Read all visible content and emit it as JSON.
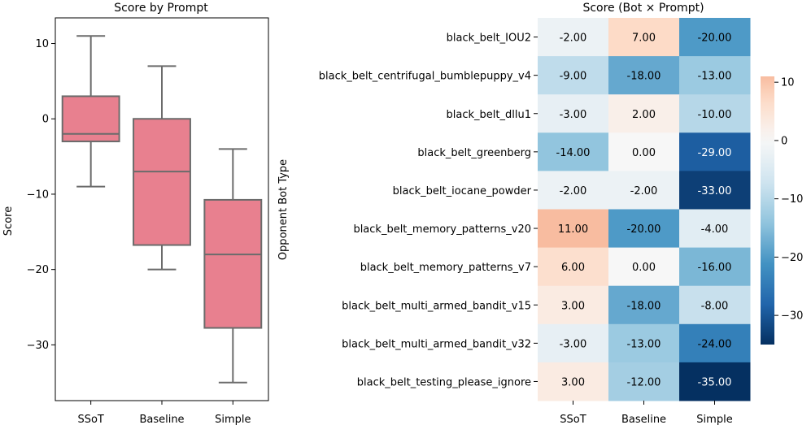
{
  "chart_data": [
    {
      "type": "box",
      "title": "Score by Prompt",
      "xlabel": "",
      "ylabel": "Score",
      "ylim": [
        -37.4,
        13.4
      ],
      "yticks": [
        10,
        0,
        -10,
        -20,
        -30
      ],
      "ytick_labels": [
        "10",
        "0",
        "−10",
        "−20",
        "−30"
      ],
      "categories": [
        "SSoT",
        "Baseline",
        "Simple"
      ],
      "box_color": "#e8808f",
      "line_color": "#6b6b6b",
      "boxes": [
        {
          "name": "SSoT",
          "whisker_low": -9,
          "q1": -3,
          "median": -2,
          "q3": 3,
          "whisker_high": 11
        },
        {
          "name": "Baseline",
          "whisker_low": -20,
          "q1": -16.75,
          "median": -7,
          "q3": 0,
          "whisker_high": 7
        },
        {
          "name": "Simple",
          "whisker_low": -35,
          "q1": -27.75,
          "median": -18,
          "q3": -10.75,
          "whisker_high": -4
        }
      ]
    },
    {
      "type": "heatmap",
      "title": "Score (Bot × Prompt)",
      "xlabel": "",
      "ylabel": "Opponent Bot Type",
      "columns": [
        "SSoT",
        "Baseline",
        "Simple"
      ],
      "rows": [
        "black_belt_IOU2",
        "black_belt_centrifugal_bumblepuppy_v4",
        "black_belt_dllu1",
        "black_belt_greenberg",
        "black_belt_iocane_powder",
        "black_belt_memory_patterns_v20",
        "black_belt_memory_patterns_v7",
        "black_belt_multi_armed_bandit_v15",
        "black_belt_multi_armed_bandit_v32",
        "black_belt_testing_please_ignore"
      ],
      "values": [
        [
          -2,
          7,
          -20
        ],
        [
          -9,
          -18,
          -13
        ],
        [
          -3,
          2,
          -10
        ],
        [
          -14,
          0,
          -29
        ],
        [
          -2,
          -2,
          -33
        ],
        [
          11,
          -20,
          -4
        ],
        [
          6,
          0,
          -16
        ],
        [
          3,
          -18,
          -8
        ],
        [
          -3,
          -13,
          -24
        ],
        [
          3,
          -12,
          -35
        ]
      ],
      "cell_labels": [
        [
          "-2.00",
          "7.00",
          "-20.00"
        ],
        [
          "-9.00",
          "-18.00",
          "-13.00"
        ],
        [
          "-3.00",
          "2.00",
          "-10.00"
        ],
        [
          "-14.00",
          "0.00",
          "-29.00"
        ],
        [
          "-2.00",
          "-2.00",
          "-33.00"
        ],
        [
          "11.00",
          "-20.00",
          "-4.00"
        ],
        [
          "6.00",
          "0.00",
          "-16.00"
        ],
        [
          "3.00",
          "-18.00",
          "-8.00"
        ],
        [
          "-3.00",
          "-13.00",
          "-24.00"
        ],
        [
          "3.00",
          "-12.00",
          "-35.00"
        ]
      ],
      "colormap": "RdBu_r (centered at 0)",
      "colorbar": {
        "range": [
          -35,
          11
        ],
        "ticks": [
          10,
          0,
          -10,
          -20,
          -30
        ],
        "tick_labels": [
          "10",
          "0",
          "−10",
          "−20",
          "−30"
        ]
      }
    }
  ]
}
